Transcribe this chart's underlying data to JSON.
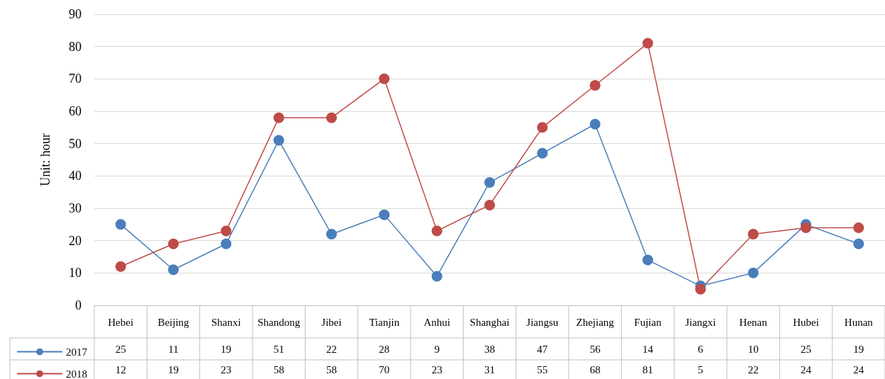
{
  "chart_data": {
    "type": "line",
    "ylabel": "Unit: hour",
    "categories": [
      "Hebei",
      "Beijing",
      "Shanxi",
      "Shandong",
      "Jibei",
      "Tianjin",
      "Anhui",
      "Shanghai",
      "Jiangsu",
      "Zhejiang",
      "Fujian",
      "Jiangxi",
      "Henan",
      "Hubei",
      "Hunan"
    ],
    "series": [
      {
        "name": "2017",
        "color": "#4a7ebb",
        "values": [
          25,
          11,
          19,
          51,
          22,
          28,
          9,
          38,
          47,
          56,
          14,
          6,
          10,
          25,
          19
        ]
      },
      {
        "name": "2018",
        "color": "#be4b48",
        "values": [
          12,
          19,
          23,
          58,
          58,
          70,
          23,
          31,
          55,
          68,
          81,
          5,
          22,
          24,
          24
        ]
      }
    ],
    "ylim": [
      0,
      90
    ],
    "yticks": [
      0,
      10,
      20,
      30,
      40,
      50,
      60,
      70,
      80,
      90
    ],
    "grid": "y",
    "legend": "bottom left",
    "marker": "circle",
    "line_style": "solid",
    "data_labels": true
  }
}
